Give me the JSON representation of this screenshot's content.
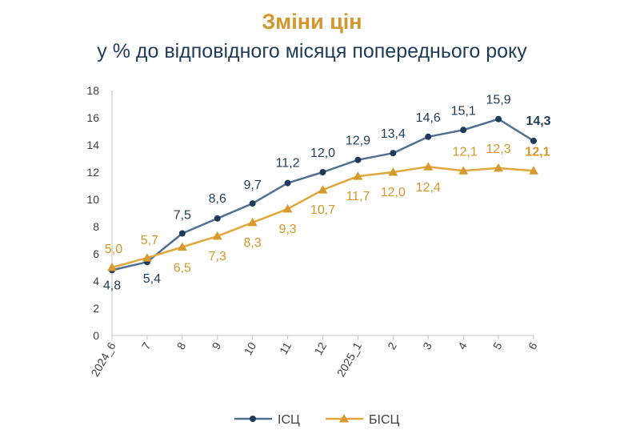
{
  "header": {
    "title": "Зміни цін",
    "subtitle": "у % до відповідного місяця попереднього року"
  },
  "colors": {
    "title": "#D4962A",
    "subtitle": "#1F3B57",
    "series_1": "#4F7092",
    "series_1_marker": "#1F3B5C",
    "series_2": "#E1A73A",
    "series_2_marker": "#D89A2E",
    "series_1_label": "#1F3B57",
    "series_2_label": "#D4962A",
    "axis": "#BFBFBF"
  },
  "chart_data": {
    "type": "line",
    "categories": [
      "2024_6",
      "7",
      "8",
      "9",
      "10",
      "11",
      "12",
      "2025_1",
      "2",
      "3",
      "4",
      "5",
      "6"
    ],
    "ylim": [
      0,
      18
    ],
    "yticks": [
      0,
      2,
      4,
      6,
      8,
      10,
      12,
      14,
      16,
      18
    ],
    "grid": false,
    "legend_position": "bottom",
    "series": [
      {
        "name": "ІСЦ",
        "values": [
          4.8,
          5.4,
          7.5,
          8.6,
          9.7,
          11.2,
          12.0,
          12.9,
          13.4,
          14.6,
          15.1,
          15.9,
          14.3
        ],
        "labels": [
          "4,8",
          "5,4",
          "7,5",
          "8,6",
          "9,7",
          "11,2",
          "12,0",
          "12,9",
          "13,4",
          "14,6",
          "15,1",
          "15,9",
          "14,3"
        ],
        "marker": "circle"
      },
      {
        "name": "БІСЦ",
        "values": [
          5.0,
          5.7,
          6.5,
          7.3,
          8.3,
          9.3,
          10.7,
          11.7,
          12.0,
          12.4,
          12.1,
          12.3,
          12.1
        ],
        "labels": [
          "5,0",
          "5,7",
          "6,5",
          "7,3",
          "8,3",
          "9,3",
          "10,7",
          "11,7",
          "12,0",
          "12,4",
          "12,1",
          "12,3",
          "12,1"
        ],
        "marker": "triangle"
      }
    ]
  }
}
